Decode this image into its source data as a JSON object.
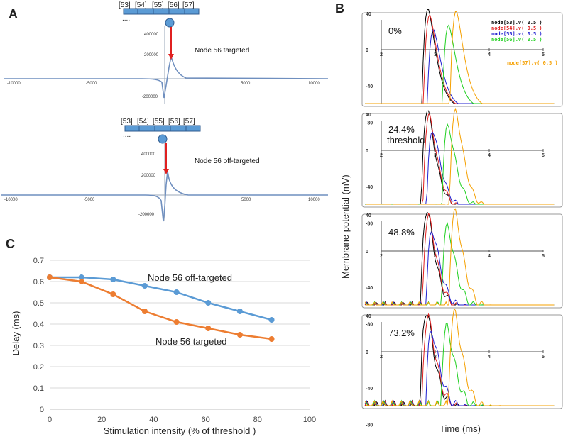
{
  "panel_labels": {
    "a": "A",
    "b": "B",
    "c": "C"
  },
  "colors": {
    "blue": "#5b9bd5",
    "orange": "#ed7d31",
    "red_arrow": "#e02020",
    "field": "#6f8fbf",
    "node53": "#000000",
    "node54": "#e02020",
    "node55": "#2020d0",
    "node56": "#20d020",
    "node57": "#f5a000"
  },
  "panel_a": {
    "top": {
      "nodes": [
        "[53]",
        "[54]",
        "[55]",
        "[56]",
        "[57]"
      ],
      "dots": "....",
      "annotation": "Node 56 targeted",
      "x_ticks": [
        "-10000",
        "-5000",
        "5000",
        "10000"
      ],
      "y_ticks": [
        "400000",
        "200000",
        "-200000"
      ]
    },
    "bottom": {
      "nodes": [
        "[53]",
        "[54]",
        "[55]",
        "[56]",
        "[57]"
      ],
      "dots": "....",
      "annotation": "Node 56 off-targeted",
      "x_ticks": [
        "-10000",
        "-5000",
        "5000",
        "10000"
      ],
      "y_ticks": [
        "400000",
        "200000",
        "-200000"
      ]
    }
  },
  "panel_b": {
    "y_label": "Membrane potential (mV)",
    "x_label": "Time (ms)",
    "y_ticks": [
      "40",
      "0",
      "-40",
      "-80"
    ],
    "x_ticks": [
      "2",
      "3",
      "4",
      "5"
    ],
    "legend": [
      "node[53].v( 0.5 )",
      "node[54].v( 0.5 )",
      "node[55].v( 0.5 )",
      "node[56].v( 0.5 )",
      "node[57].v( 0.5 )"
    ],
    "panels": [
      {
        "label": "0%"
      },
      {
        "label": "24.4%",
        "sublabel": "threshold"
      },
      {
        "label": "48.8%"
      },
      {
        "label": "73.2%"
      }
    ]
  },
  "chart_data": [
    {
      "type": "line",
      "title": "",
      "xlabel": "Stimulation intensity (% of threshold )",
      "ylabel": "Delay (ms)",
      "xlim": [
        0,
        100
      ],
      "ylim": [
        0,
        0.7
      ],
      "x_ticks": [
        "0",
        "20",
        "40",
        "60",
        "80",
        "100"
      ],
      "y_ticks": [
        "0",
        "0.1",
        "0.2",
        "0.3",
        "0.4",
        "0.5",
        "0.6",
        "0.7"
      ],
      "x": [
        0,
        12.2,
        24.4,
        36.6,
        48.8,
        61,
        73.2,
        85.4
      ],
      "series": [
        {
          "name": "Node 56 off-targeted",
          "color": "#5b9bd5",
          "values": [
            0.62,
            0.62,
            0.61,
            0.58,
            0.55,
            0.5,
            0.46,
            0.42
          ]
        },
        {
          "name": "Node 56 targeted",
          "color": "#ed7d31",
          "values": [
            0.62,
            0.6,
            0.54,
            0.46,
            0.41,
            0.38,
            0.35,
            0.33
          ]
        }
      ]
    }
  ]
}
